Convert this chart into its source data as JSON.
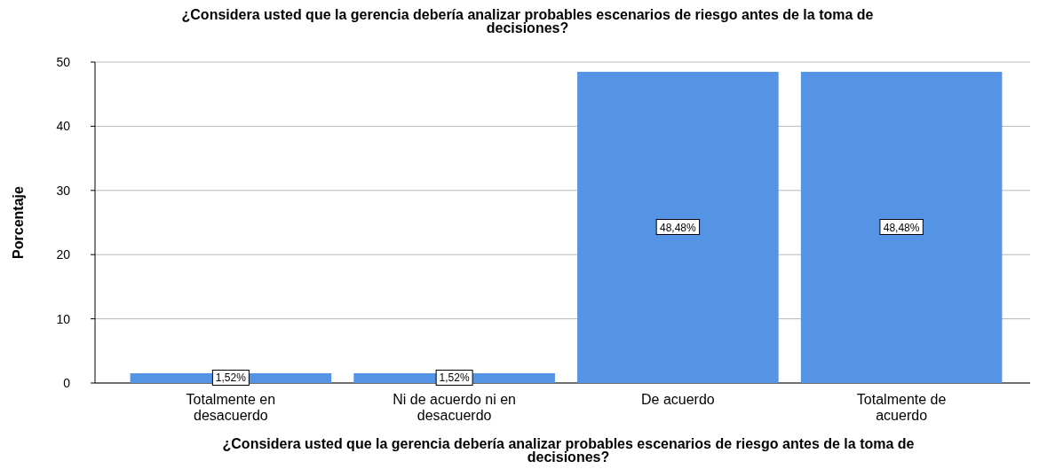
{
  "chart_data": {
    "type": "bar",
    "title": "¿Considera usted que la gerencia debería analizar probables escenarios de riesgo antes de la toma de decisiones?",
    "xlabel": "¿Considera usted que la gerencia debería analizar probables escenarios de riesgo antes de la toma de decisiones?",
    "ylabel": "Porcentaje",
    "categories": [
      "Totalmente en desacuerdo",
      "Ni de acuerdo ni en desacuerdo",
      "De acuerdo",
      "Totalmente de acuerdo"
    ],
    "values": [
      1.52,
      1.52,
      48.48,
      48.48
    ],
    "value_labels": [
      "1,52%",
      "1,52%",
      "48,48%",
      "48,48%"
    ],
    "color": "#5594e4",
    "ylim": [
      0,
      50
    ],
    "yticks": [
      0,
      10,
      20,
      30,
      40,
      50
    ],
    "grid": "y"
  }
}
